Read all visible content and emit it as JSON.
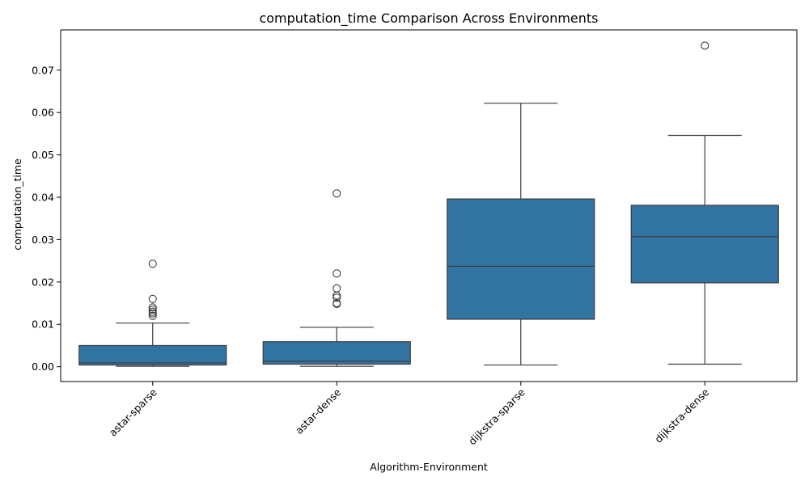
{
  "chart_data": {
    "type": "box",
    "title": "computation_time Comparison Across Environments",
    "xlabel": "Algorithm-Environment",
    "ylabel": "computation_time",
    "ylim": [
      -0.0035,
      0.0795
    ],
    "yticks": [
      0.0,
      0.01,
      0.02,
      0.03,
      0.04,
      0.05,
      0.06,
      0.07
    ],
    "ytick_labels": [
      "0.00",
      "0.01",
      "0.02",
      "0.03",
      "0.04",
      "0.05",
      "0.06",
      "0.07"
    ],
    "grid": false,
    "box_color": "#3274a1",
    "line_color": "#3d3d3d",
    "categories": [
      "astar-sparse",
      "astar-dense",
      "dijkstra-sparse",
      "dijkstra-dense"
    ],
    "boxes": [
      {
        "category": "astar-sparse",
        "whisker_low": 0.0001,
        "q1": 0.0004,
        "median": 0.0009,
        "q3": 0.005,
        "whisker_high": 0.0103,
        "outliers": [
          0.0243,
          0.016,
          0.014,
          0.0135,
          0.013,
          0.0126,
          0.012
        ]
      },
      {
        "category": "astar-dense",
        "whisker_low": 0.0001,
        "q1": 0.0006,
        "median": 0.0013,
        "q3": 0.0059,
        "whisker_high": 0.0093,
        "outliers": [
          0.0409,
          0.022,
          0.0185,
          0.0168,
          0.0163,
          0.015,
          0.0148
        ]
      },
      {
        "category": "dijkstra-sparse",
        "whisker_low": 0.0004,
        "q1": 0.0112,
        "median": 0.0237,
        "q3": 0.0396,
        "whisker_high": 0.0622,
        "outliers": []
      },
      {
        "category": "dijkstra-dense",
        "whisker_low": 0.0006,
        "q1": 0.0198,
        "median": 0.0307,
        "q3": 0.0381,
        "whisker_high": 0.0546,
        "outliers": [
          0.0758
        ]
      }
    ]
  }
}
